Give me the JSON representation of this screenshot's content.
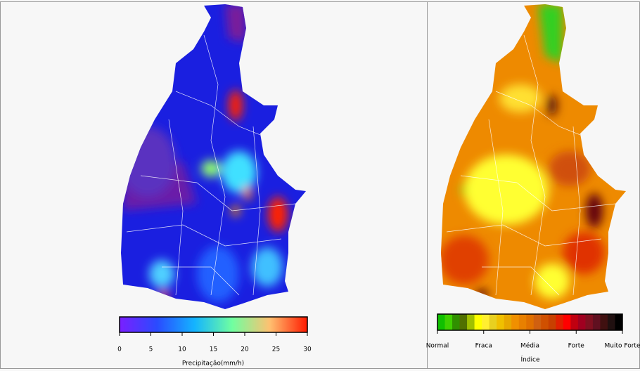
{
  "left_panel": {
    "colorbar": {
      "label": "Precipitação(mm/h)",
      "range": [
        0,
        30
      ],
      "ticks": [
        0,
        5,
        10,
        15,
        20,
        25,
        30
      ]
    }
  },
  "right_panel": {
    "colorbar": {
      "label": "Índice",
      "categories": [
        "Normal",
        "Fraca",
        "Média",
        "Forte",
        "Muito Forte"
      ]
    }
  }
}
